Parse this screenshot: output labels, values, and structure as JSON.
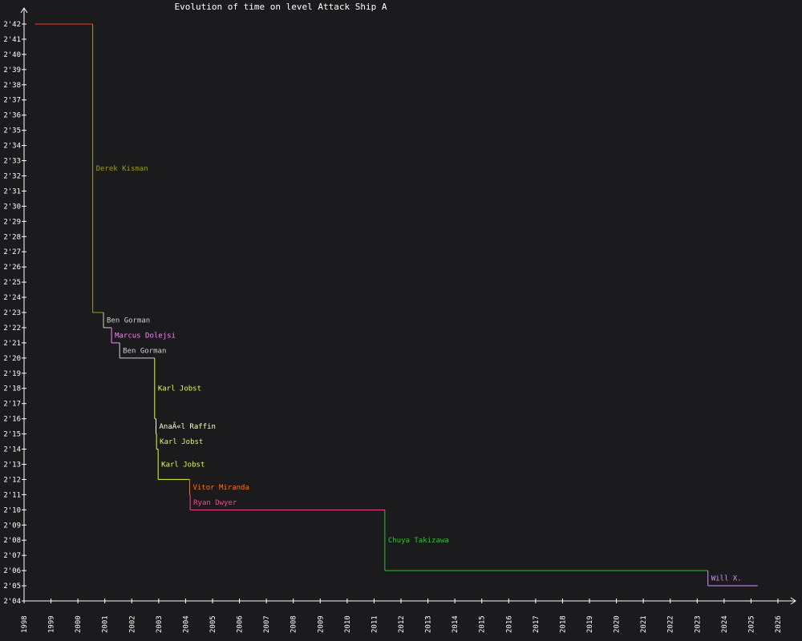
{
  "chart_data": {
    "type": "line",
    "title": "Evolution of time on level Attack Ship A",
    "x_range": [
      1998.0,
      2026.0
    ],
    "y_range_seconds": [
      124,
      162
    ],
    "x_ticks": [
      "1998",
      "1999",
      "2000",
      "2001",
      "2002",
      "2003",
      "2004",
      "2005",
      "2006",
      "2007",
      "2008",
      "2009",
      "2010",
      "2011",
      "2012",
      "2013",
      "2014",
      "2015",
      "2016",
      "2017",
      "2018",
      "2019",
      "2020",
      "2021",
      "2022",
      "2023",
      "2024",
      "2025",
      "2026"
    ],
    "y_ticks": [
      "2'04",
      "2'05",
      "2'06",
      "2'07",
      "2'08",
      "2'09",
      "2'10",
      "2'11",
      "2'12",
      "2'13",
      "2'14",
      "2'15",
      "2'16",
      "2'17",
      "2'18",
      "2'19",
      "2'20",
      "2'21",
      "2'22",
      "2'23",
      "2'24",
      "2'25",
      "2'26",
      "2'27",
      "2'28",
      "2'29",
      "2'30",
      "2'31",
      "2'32",
      "2'33",
      "2'34",
      "2'35",
      "2'36",
      "2'37",
      "2'38",
      "2'39",
      "2'40",
      "2'41",
      "2'42"
    ],
    "series": [
      {
        "label": "",
        "color": "#ff3030",
        "start": 1998.4,
        "end": 2000.55,
        "time_s": 162
      },
      {
        "label": "Derek Kisman",
        "color": "#9a9a20",
        "start": 2000.55,
        "end": 2000.95,
        "time_s": 143
      },
      {
        "label": "Ben Gorman",
        "color": "#d0d0d0",
        "start": 2000.95,
        "end": 2001.25,
        "time_s": 142
      },
      {
        "label": "Marcus Dolejsi",
        "color": "#ff80ff",
        "start": 2001.25,
        "end": 2001.55,
        "time_s": 141
      },
      {
        "label": "Ben Gorman",
        "color": "#d0d0d0",
        "start": 2001.55,
        "end": 2002.85,
        "time_s": 140
      },
      {
        "label": "Karl Jobst",
        "color": "#e0ff40",
        "start": 2002.85,
        "end": 2002.9,
        "time_s": 136
      },
      {
        "label": "AnaÃ«l Raffin",
        "color": "#ffffd0",
        "start": 2002.9,
        "end": 2002.92,
        "time_s": 135
      },
      {
        "label": "Karl Jobst",
        "color": "#e0ff40",
        "start": 2002.92,
        "end": 2002.98,
        "time_s": 134
      },
      {
        "label": "Karl Jobst",
        "color": "#e0ff40",
        "start": 2002.98,
        "end": 2004.15,
        "time_s": 132
      },
      {
        "label": "Vitor Miranda",
        "color": "#ff7020",
        "start": 2004.15,
        "end": 2004.17,
        "time_s": 131
      },
      {
        "label": "Ryan Dwyer",
        "color": "#ff4090",
        "start": 2004.17,
        "end": 2011.4,
        "time_s": 130
      },
      {
        "label": "Chuya Takizawa",
        "color": "#30c030",
        "start": 2011.4,
        "end": 2023.4,
        "time_s": 126
      },
      {
        "label": "Will X.",
        "color": "#d890ff",
        "start": 2023.4,
        "end": 2025.25,
        "time_s": 125
      }
    ],
    "grid": false,
    "legend": "none"
  }
}
